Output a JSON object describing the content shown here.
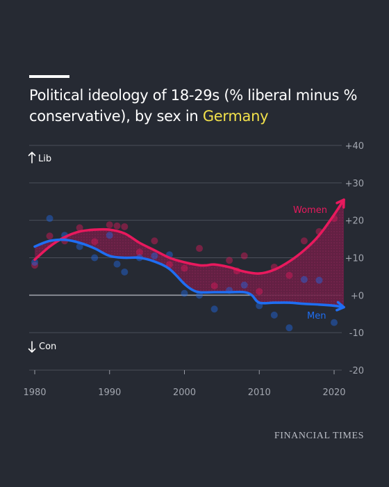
{
  "title": {
    "text_before": "Political ideology of 18-29s (% liberal minus % conservative), by sex in ",
    "highlight": "Germany",
    "highlight_color": "#f2e14b"
  },
  "brand": "FINANCIAL TIMES",
  "colors": {
    "background": "#262a33",
    "women": "#e8195d",
    "men": "#1f6ef2",
    "grid": "#4a4f5a",
    "zero_line": "#9a9da6"
  },
  "chart_data": {
    "type": "line",
    "xlim": [
      1980,
      2021
    ],
    "ylim": [
      -20,
      40
    ],
    "x_ticks": [
      1980,
      1990,
      2000,
      2010,
      2020
    ],
    "y_ticks": [
      40,
      30,
      20,
      10,
      0,
      -10,
      -20
    ],
    "y_tick_labels": [
      "+40",
      "+30",
      "+20",
      "+10",
      "+0",
      "-10",
      "-20"
    ],
    "direction_labels": {
      "up": "Lib",
      "down": "Con"
    },
    "series": [
      {
        "name": "Women",
        "color": "#e8195d",
        "trend": [
          [
            1980,
            9.5
          ],
          [
            1982,
            13
          ],
          [
            1984,
            15.5
          ],
          [
            1986,
            17
          ],
          [
            1988,
            17.5
          ],
          [
            1990,
            17.5
          ],
          [
            1992,
            16.5
          ],
          [
            1994,
            14
          ],
          [
            1996,
            12
          ],
          [
            1998,
            10
          ],
          [
            2000,
            8.8
          ],
          [
            2002,
            8
          ],
          [
            2003,
            8
          ],
          [
            2004,
            8.2
          ],
          [
            2006,
            7.5
          ],
          [
            2008,
            6.3
          ],
          [
            2010,
            5.8
          ],
          [
            2012,
            6.8
          ],
          [
            2014,
            9
          ],
          [
            2016,
            12
          ],
          [
            2018,
            16
          ],
          [
            2020,
            21.5
          ],
          [
            2021.3,
            25.5
          ]
        ],
        "points": [
          [
            1980,
            8
          ],
          [
            1982,
            15.8
          ],
          [
            1984,
            14.5
          ],
          [
            1986,
            18
          ],
          [
            1988,
            14.3
          ],
          [
            1990,
            18.8
          ],
          [
            1991,
            18.5
          ],
          [
            1992,
            18.3
          ],
          [
            1994,
            11.5
          ],
          [
            1996,
            14.5
          ],
          [
            1998,
            8.2
          ],
          [
            2000,
            7.2
          ],
          [
            2002,
            12.5
          ],
          [
            2004,
            2.5
          ],
          [
            2006,
            9.3
          ],
          [
            2007,
            6.5
          ],
          [
            2008,
            10.5
          ],
          [
            2010,
            1
          ],
          [
            2012,
            7.5
          ],
          [
            2014,
            5.3
          ],
          [
            2016,
            14.5
          ],
          [
            2018,
            17
          ],
          [
            2020,
            20.5
          ]
        ]
      },
      {
        "name": "Men",
        "color": "#1f6ef2",
        "trend": [
          [
            1980,
            13
          ],
          [
            1982,
            14.5
          ],
          [
            1984,
            14.8
          ],
          [
            1986,
            14
          ],
          [
            1988,
            12.5
          ],
          [
            1990,
            10.5
          ],
          [
            1992,
            10
          ],
          [
            1994,
            10
          ],
          [
            1996,
            9
          ],
          [
            1998,
            7
          ],
          [
            2000,
            3
          ],
          [
            2001,
            1.5
          ],
          [
            2002,
            0.8
          ],
          [
            2004,
            0.8
          ],
          [
            2006,
            0.8
          ],
          [
            2008,
            0.8
          ],
          [
            2009,
            0
          ],
          [
            2010,
            -2
          ],
          [
            2012,
            -2
          ],
          [
            2014,
            -2
          ],
          [
            2016,
            -2.3
          ],
          [
            2018,
            -2.5
          ],
          [
            2020,
            -2.8
          ],
          [
            2021.3,
            -3.2
          ]
        ],
        "points": [
          [
            1980,
            8.8
          ],
          [
            1982,
            20.5
          ],
          [
            1984,
            16
          ],
          [
            1986,
            13
          ],
          [
            1988,
            10
          ],
          [
            1990,
            16
          ],
          [
            1991,
            8.3
          ],
          [
            1992,
            6.2
          ],
          [
            1994,
            10
          ],
          [
            1996,
            10.5
          ],
          [
            1998,
            10.8
          ],
          [
            2000,
            0.5
          ],
          [
            2002,
            0
          ],
          [
            2004,
            -3.7
          ],
          [
            2006,
            1.3
          ],
          [
            2008,
            2.7
          ],
          [
            2010,
            -2.8
          ],
          [
            2012,
            -5.3
          ],
          [
            2014,
            -8.7
          ],
          [
            2016,
            4.2
          ],
          [
            2018,
            4
          ],
          [
            2020,
            -7.3
          ]
        ]
      }
    ]
  }
}
